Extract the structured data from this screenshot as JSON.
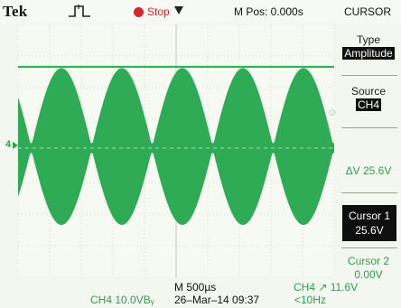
{
  "header": {
    "brand": "Tek",
    "acquisition_icon": "pulse-trigger-icon",
    "run_state": "Stop",
    "horizontal_position": "M Pos: 0.000s",
    "menu_title": "CURSOR"
  },
  "menu": {
    "type_label": "Type",
    "type_value": "Amplitude",
    "source_label": "Source",
    "source_value": "CH4",
    "delta_v": "ΔV 25.6V",
    "cursor1_label": "Cursor 1",
    "cursor1_value": "25.6V",
    "cursor2_label": "Cursor 2",
    "cursor2_value": "0.00V"
  },
  "status": {
    "timebase": "M 500µs",
    "channel_scale": "CH4  10.0VBᵧ",
    "date_time": "26–Mar–14 09:37",
    "trigger": "CH4 ↗ 11.6V",
    "trigger_freq": "<10Hz"
  },
  "markers": {
    "channel_ground_label": "4"
  },
  "colors": {
    "trace": "#2faa55",
    "cursor_line": "#35b256",
    "grid": "#b9bfb4",
    "stop_red": "#d9262c",
    "status_green": "#2f9e4e"
  },
  "waveform": {
    "carrier": "amplitude-modulated sine (filled envelope)",
    "envelope_peaks": 5
  }
}
